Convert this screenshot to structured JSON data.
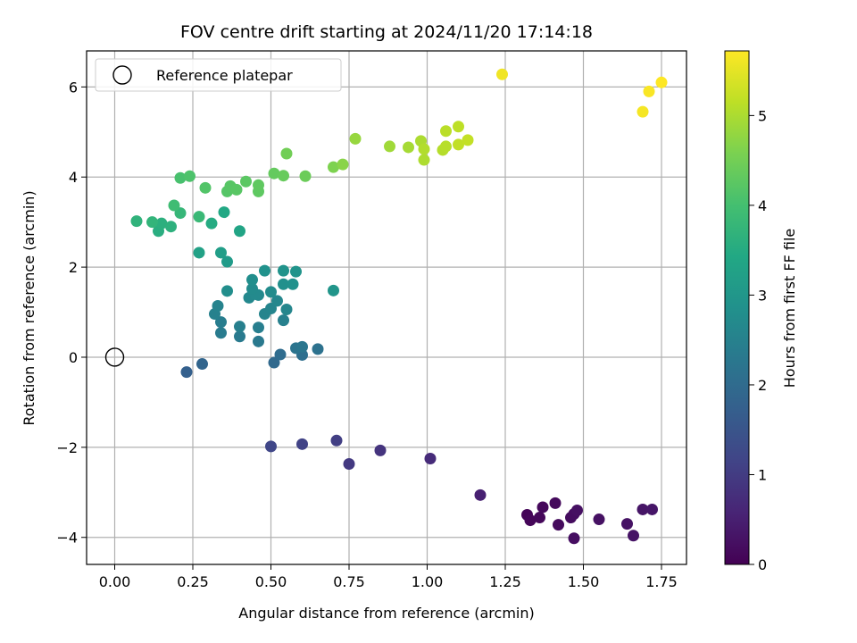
{
  "chart_data": {
    "type": "scatter",
    "title": "FOV centre drift starting at 2024/11/20 17:14:18",
    "xlabel": "Angular distance from reference (arcmin)",
    "ylabel": "Rotation from reference (arcmin)",
    "xlim": [
      -0.09,
      1.83
    ],
    "ylim": [
      -4.6,
      6.8
    ],
    "xticks": [
      0.0,
      0.25,
      0.5,
      0.75,
      1.0,
      1.25,
      1.5,
      1.75
    ],
    "xtick_labels": [
      "0.00",
      "0.25",
      "0.50",
      "0.75",
      "1.00",
      "1.25",
      "1.50",
      "1.75"
    ],
    "yticks": [
      -4,
      -2,
      0,
      2,
      4,
      6
    ],
    "ytick_labels": [
      "−4",
      "−2",
      "0",
      "2",
      "4",
      "6"
    ],
    "grid": true,
    "colormap": "viridis",
    "colorbar": {
      "label": "Hours from first FF file",
      "range": [
        0,
        5.72
      ],
      "ticks": [
        0,
        1,
        2,
        3,
        4,
        5
      ],
      "tick_labels": [
        "0",
        "1",
        "2",
        "3",
        "4",
        "5"
      ]
    },
    "legend": {
      "position": "top-left",
      "entries": [
        {
          "label": "Reference platepar",
          "marker": "hollow-circle"
        }
      ]
    },
    "reference_point": {
      "x": 0.0,
      "y": 0.0
    },
    "points": [
      {
        "x": 1.32,
        "y": -3.5,
        "h": 0.05
      },
      {
        "x": 1.33,
        "y": -3.62,
        "h": 0.08
      },
      {
        "x": 1.36,
        "y": -3.56,
        "h": 0.1
      },
      {
        "x": 1.37,
        "y": -3.33,
        "h": 0.12
      },
      {
        "x": 1.41,
        "y": -3.24,
        "h": 0.14
      },
      {
        "x": 1.42,
        "y": -3.72,
        "h": 0.16
      },
      {
        "x": 1.46,
        "y": -3.56,
        "h": 0.18
      },
      {
        "x": 1.47,
        "y": -3.48,
        "h": 0.2
      },
      {
        "x": 1.47,
        "y": -4.02,
        "h": 0.22
      },
      {
        "x": 1.48,
        "y": -3.4,
        "h": 0.24
      },
      {
        "x": 1.55,
        "y": -3.6,
        "h": 0.26
      },
      {
        "x": 1.64,
        "y": -3.7,
        "h": 0.28
      },
      {
        "x": 1.66,
        "y": -3.96,
        "h": 0.3
      },
      {
        "x": 1.69,
        "y": -3.38,
        "h": 0.32
      },
      {
        "x": 1.72,
        "y": -3.38,
        "h": 0.34
      },
      {
        "x": 1.17,
        "y": -3.06,
        "h": 0.5
      },
      {
        "x": 1.01,
        "y": -2.25,
        "h": 0.7
      },
      {
        "x": 0.85,
        "y": -2.07,
        "h": 0.85
      },
      {
        "x": 0.75,
        "y": -2.37,
        "h": 0.95
      },
      {
        "x": 0.71,
        "y": -1.85,
        "h": 1.05
      },
      {
        "x": 0.6,
        "y": -1.93,
        "h": 1.12
      },
      {
        "x": 0.5,
        "y": -1.98,
        "h": 1.2
      },
      {
        "x": 0.23,
        "y": -0.33,
        "h": 1.75
      },
      {
        "x": 0.28,
        "y": -0.15,
        "h": 1.85
      },
      {
        "x": 0.51,
        "y": -0.12,
        "h": 1.95
      },
      {
        "x": 0.53,
        "y": 0.06,
        "h": 2.02
      },
      {
        "x": 0.6,
        "y": 0.05,
        "h": 2.08
      },
      {
        "x": 0.65,
        "y": 0.18,
        "h": 2.15
      },
      {
        "x": 0.58,
        "y": 0.2,
        "h": 2.2
      },
      {
        "x": 0.6,
        "y": 0.23,
        "h": 2.25
      },
      {
        "x": 0.46,
        "y": 0.35,
        "h": 2.3
      },
      {
        "x": 0.4,
        "y": 0.46,
        "h": 2.33
      },
      {
        "x": 0.34,
        "y": 0.54,
        "h": 2.36
      },
      {
        "x": 0.34,
        "y": 0.78,
        "h": 2.4
      },
      {
        "x": 0.46,
        "y": 0.66,
        "h": 2.42
      },
      {
        "x": 0.4,
        "y": 0.68,
        "h": 2.45
      },
      {
        "x": 0.54,
        "y": 0.82,
        "h": 2.48
      },
      {
        "x": 0.32,
        "y": 0.96,
        "h": 2.5
      },
      {
        "x": 0.33,
        "y": 1.14,
        "h": 2.53
      },
      {
        "x": 0.48,
        "y": 0.96,
        "h": 2.56
      },
      {
        "x": 0.5,
        "y": 1.08,
        "h": 2.58
      },
      {
        "x": 0.55,
        "y": 1.06,
        "h": 2.6
      },
      {
        "x": 0.52,
        "y": 1.25,
        "h": 2.63
      },
      {
        "x": 0.43,
        "y": 1.32,
        "h": 2.66
      },
      {
        "x": 0.46,
        "y": 1.38,
        "h": 2.68
      },
      {
        "x": 0.45,
        "y": 1.4,
        "h": 2.7
      },
      {
        "x": 0.44,
        "y": 1.52,
        "h": 2.72
      },
      {
        "x": 0.5,
        "y": 1.45,
        "h": 2.75
      },
      {
        "x": 0.36,
        "y": 1.47,
        "h": 2.78
      },
      {
        "x": 0.44,
        "y": 1.72,
        "h": 2.8
      },
      {
        "x": 0.54,
        "y": 1.62,
        "h": 2.83
      },
      {
        "x": 0.57,
        "y": 1.62,
        "h": 2.85
      },
      {
        "x": 0.48,
        "y": 1.92,
        "h": 2.88
      },
      {
        "x": 0.54,
        "y": 1.92,
        "h": 2.9
      },
      {
        "x": 0.58,
        "y": 1.9,
        "h": 2.93
      },
      {
        "x": 0.7,
        "y": 1.48,
        "h": 2.97
      },
      {
        "x": 0.36,
        "y": 2.12,
        "h": 3.1
      },
      {
        "x": 0.34,
        "y": 2.32,
        "h": 3.18
      },
      {
        "x": 0.27,
        "y": 2.32,
        "h": 3.26
      },
      {
        "x": 0.4,
        "y": 2.8,
        "h": 3.34
      },
      {
        "x": 0.35,
        "y": 3.22,
        "h": 3.42
      },
      {
        "x": 0.31,
        "y": 2.97,
        "h": 3.5
      },
      {
        "x": 0.14,
        "y": 2.8,
        "h": 3.56
      },
      {
        "x": 0.15,
        "y": 2.97,
        "h": 3.6
      },
      {
        "x": 0.18,
        "y": 2.9,
        "h": 3.64
      },
      {
        "x": 0.07,
        "y": 3.02,
        "h": 3.68
      },
      {
        "x": 0.12,
        "y": 3.0,
        "h": 3.72
      },
      {
        "x": 0.21,
        "y": 3.2,
        "h": 3.78
      },
      {
        "x": 0.27,
        "y": 3.12,
        "h": 3.84
      },
      {
        "x": 0.19,
        "y": 3.37,
        "h": 3.92
      },
      {
        "x": 0.21,
        "y": 3.98,
        "h": 4.05
      },
      {
        "x": 0.24,
        "y": 4.02,
        "h": 4.1
      },
      {
        "x": 0.29,
        "y": 3.76,
        "h": 4.15
      },
      {
        "x": 0.36,
        "y": 3.68,
        "h": 4.18
      },
      {
        "x": 0.37,
        "y": 3.8,
        "h": 4.2
      },
      {
        "x": 0.39,
        "y": 3.72,
        "h": 4.22
      },
      {
        "x": 0.42,
        "y": 3.9,
        "h": 4.25
      },
      {
        "x": 0.46,
        "y": 3.68,
        "h": 4.28
      },
      {
        "x": 0.46,
        "y": 3.82,
        "h": 4.3
      },
      {
        "x": 0.51,
        "y": 4.08,
        "h": 4.34
      },
      {
        "x": 0.54,
        "y": 4.03,
        "h": 4.38
      },
      {
        "x": 0.61,
        "y": 4.02,
        "h": 4.42
      },
      {
        "x": 0.55,
        "y": 4.52,
        "h": 4.48
      },
      {
        "x": 0.7,
        "y": 4.22,
        "h": 4.6
      },
      {
        "x": 0.73,
        "y": 4.28,
        "h": 4.7
      },
      {
        "x": 0.77,
        "y": 4.85,
        "h": 4.82
      },
      {
        "x": 0.88,
        "y": 4.68,
        "h": 4.9
      },
      {
        "x": 0.94,
        "y": 4.66,
        "h": 4.95
      },
      {
        "x": 0.98,
        "y": 4.8,
        "h": 5.0
      },
      {
        "x": 0.99,
        "y": 4.38,
        "h": 5.02
      },
      {
        "x": 0.99,
        "y": 4.62,
        "h": 5.05
      },
      {
        "x": 1.05,
        "y": 4.6,
        "h": 5.08
      },
      {
        "x": 1.06,
        "y": 4.68,
        "h": 5.1
      },
      {
        "x": 1.06,
        "y": 5.02,
        "h": 5.12
      },
      {
        "x": 1.1,
        "y": 5.12,
        "h": 5.15
      },
      {
        "x": 1.1,
        "y": 4.72,
        "h": 5.18
      },
      {
        "x": 1.13,
        "y": 4.82,
        "h": 5.2
      },
      {
        "x": 1.24,
        "y": 6.28,
        "h": 5.6
      },
      {
        "x": 1.69,
        "y": 5.45,
        "h": 5.65
      },
      {
        "x": 1.71,
        "y": 5.9,
        "h": 5.68
      },
      {
        "x": 1.75,
        "y": 6.1,
        "h": 5.72
      }
    ]
  }
}
